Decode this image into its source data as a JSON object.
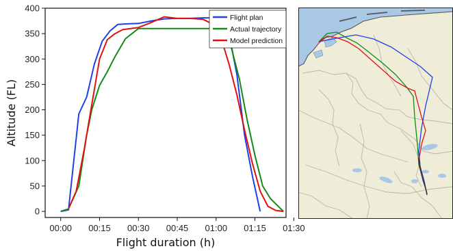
{
  "chart_data": {
    "type": "line",
    "title": "",
    "xlabel": "Flight duration (h)",
    "ylabel": "Altitude (FL)",
    "x_unit": "minutes",
    "xlim": [
      -6,
      87
    ],
    "ylim": [
      -12,
      400
    ],
    "xticks": [
      0,
      15,
      30,
      45,
      60,
      75,
      90
    ],
    "xtick_labels": [
      "00:00",
      "00:15",
      "00:30",
      "00:45",
      "01:00",
      "01:15",
      "01:30"
    ],
    "yticks": [
      0,
      50,
      100,
      150,
      200,
      250,
      300,
      350,
      400
    ],
    "legend_position": "top-right",
    "series": [
      {
        "name": "Flight plan",
        "color": "#1f3fe6",
        "x": [
          0,
          3,
          7,
          10,
          13,
          16,
          19,
          22,
          25,
          30,
          35,
          40,
          45,
          50,
          55,
          60,
          63,
          65,
          68,
          71,
          74,
          77
        ],
        "y": [
          0,
          3,
          192,
          225,
          290,
          335,
          355,
          368,
          369,
          370,
          375,
          379,
          380,
          380,
          381,
          381,
          375,
          350,
          270,
          150,
          70,
          0
        ]
      },
      {
        "name": "Actual trajectory",
        "color": "#138a13",
        "x": [
          0,
          3,
          7,
          10,
          12,
          15,
          18,
          21,
          25,
          30,
          35,
          40,
          45,
          50,
          55,
          60,
          63,
          66,
          69,
          72,
          75,
          78,
          81,
          84,
          86
        ],
        "y": [
          0,
          5,
          50,
          150,
          200,
          248,
          275,
          305,
          340,
          360,
          360,
          360,
          360,
          360,
          360,
          360,
          345,
          320,
          260,
          180,
          110,
          50,
          25,
          10,
          0
        ]
      },
      {
        "name": "Model prediction",
        "color": "#e01010",
        "x": [
          3,
          6,
          9,
          12,
          15,
          18,
          21,
          24,
          27,
          30,
          35,
          40,
          45,
          50,
          55,
          59,
          62,
          65,
          68,
          71,
          74,
          77,
          80,
          83,
          86
        ],
        "y": [
          5,
          40,
          120,
          210,
          300,
          338,
          350,
          358,
          360,
          362,
          372,
          383,
          380,
          380,
          378,
          368,
          340,
          290,
          230,
          160,
          95,
          40,
          10,
          2,
          0
        ]
      }
    ]
  }
}
